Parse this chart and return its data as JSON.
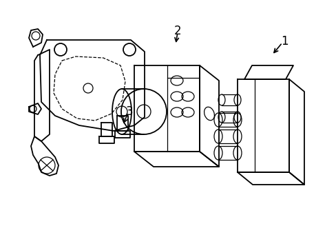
{
  "background_color": "#ffffff",
  "line_color": "#000000",
  "line_width": 1.3,
  "figure_width": 4.89,
  "figure_height": 3.6,
  "dpi": 100
}
